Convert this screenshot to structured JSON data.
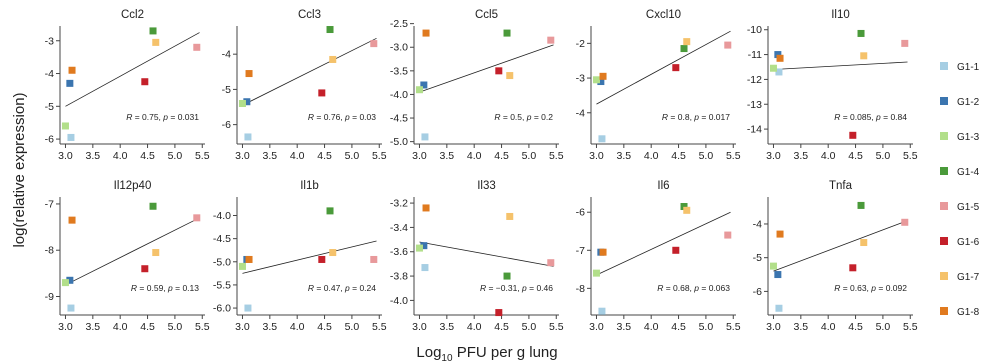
{
  "chart_data": {
    "type": "scatter",
    "ylabel": "log(relative expression)",
    "xlabel_prefix": "Log",
    "xlabel_sub": "10",
    "xlabel_suffix": " PFU per g lung",
    "legend_placement": "right",
    "legend": [
      {
        "name": "G1-1",
        "color": "#a6cee3"
      },
      {
        "name": "G1-2",
        "color": "#3b75af"
      },
      {
        "name": "G1-3",
        "color": "#b2df8a"
      },
      {
        "name": "G1-4",
        "color": "#4a9a3a"
      },
      {
        "name": "G1-5",
        "color": "#e8999b"
      },
      {
        "name": "G1-6",
        "color": "#c4202a"
      },
      {
        "name": "G1-7",
        "color": "#f5c26b"
      },
      {
        "name": "G1-8",
        "color": "#e07a1f"
      }
    ],
    "x_values": [
      3.1,
      3.08,
      3.0,
      4.6,
      5.4,
      4.45,
      4.65,
      3.12
    ],
    "xlim": [
      2.9,
      5.55
    ],
    "xticks": [
      "3.0",
      "3.5",
      "4.0",
      "4.5",
      "5.0",
      "5.5"
    ],
    "panels": [
      {
        "title": "Ccl2",
        "ylim": [
          -6.15,
          -2.55
        ],
        "yticks": [
          "-3",
          "-4",
          "-5",
          "-6"
        ],
        "y": [
          -5.95,
          -4.3,
          -5.6,
          -2.7,
          -3.2,
          -4.25,
          -3.05,
          -3.9
        ],
        "fit": [
          [
            3.0,
            -5.0
          ],
          [
            5.45,
            -2.75
          ]
        ],
        "annotation": {
          "r": "0.75",
          "p": "0.031"
        }
      },
      {
        "title": "Ccl3",
        "ylim": [
          -6.55,
          -3.2
        ],
        "yticks": [
          "-4",
          "-5",
          "-6"
        ],
        "y": [
          -6.35,
          -5.35,
          -5.4,
          -3.3,
          -3.7,
          -5.1,
          -4.15,
          -4.55
        ],
        "fit": [
          [
            3.0,
            -5.45
          ],
          [
            5.45,
            -3.55
          ]
        ],
        "annotation": {
          "r": "0.76",
          "p": "0.03"
        }
      },
      {
        "title": "Ccl5",
        "ylim": [
          -5.05,
          -2.55
        ],
        "yticks": [
          "-2.5",
          "-3.0",
          "-3.5",
          "-4.0",
          "-4.5",
          "-5.0"
        ],
        "y": [
          -4.9,
          -3.8,
          -3.9,
          -2.7,
          -2.85,
          -3.5,
          -3.6,
          -2.7
        ],
        "fit": [
          [
            3.0,
            -3.95
          ],
          [
            5.45,
            -2.95
          ]
        ],
        "annotation": {
          "r": "0.5",
          "p": "0.2"
        }
      },
      {
        "title": "Cxcl10",
        "ylim": [
          -4.9,
          -1.5
        ],
        "yticks": [
          "-2",
          "-3",
          "-4"
        ],
        "y": [
          -4.75,
          -3.1,
          -3.05,
          -2.15,
          -2.05,
          -2.7,
          -1.95,
          -2.95
        ],
        "fit": [
          [
            3.0,
            -3.75
          ],
          [
            5.45,
            -1.65
          ]
        ],
        "annotation": {
          "r": "0.8",
          "p": "0.017"
        }
      },
      {
        "title": "Il10",
        "ylim": [
          -14.6,
          -9.85
        ],
        "yticks": [
          "-10",
          "-11",
          "-12",
          "-13",
          "-14"
        ],
        "y": [
          -11.7,
          -11.0,
          -11.55,
          -10.15,
          -10.55,
          -14.25,
          -11.05,
          -11.15
        ],
        "fit": [
          [
            3.0,
            -11.6
          ],
          [
            5.45,
            -11.3
          ]
        ],
        "annotation": {
          "r": "0.085",
          "p": "0.84"
        }
      },
      {
        "title": "Il12p40",
        "ylim": [
          -9.4,
          -6.85
        ],
        "yticks": [
          "-7",
          "-8",
          "-9"
        ],
        "y": [
          -9.25,
          -8.65,
          -8.7,
          -7.05,
          -7.3,
          -8.4,
          -8.05,
          -7.35
        ],
        "fit": [
          [
            3.0,
            -8.75
          ],
          [
            5.45,
            -7.3
          ]
        ],
        "annotation": {
          "r": "0.59",
          "p": "0.13"
        }
      },
      {
        "title": "Il1b",
        "ylim": [
          -6.15,
          -3.6
        ],
        "yticks": [
          "-4.0",
          "-4.5",
          "-5.0",
          "-5.5",
          "-6.0"
        ],
        "y": [
          -6.0,
          -4.95,
          -5.1,
          -3.9,
          -4.95,
          -4.95,
          -4.8,
          -4.95
        ],
        "fit": [
          [
            3.0,
            -5.25
          ],
          [
            5.45,
            -4.55
          ]
        ],
        "annotation": {
          "r": "0.47",
          "p": "0.24"
        }
      },
      {
        "title": "Il33",
        "ylim": [
          -4.12,
          -3.15
        ],
        "yticks": [
          "-3.2",
          "-3.4",
          "-3.6",
          "-3.8",
          "-4.0"
        ],
        "y": [
          -3.73,
          -3.55,
          -3.57,
          -3.8,
          -3.69,
          -4.1,
          -3.31,
          -3.24
        ],
        "fit": [
          [
            3.0,
            -3.52
          ],
          [
            5.45,
            -3.72
          ]
        ],
        "annotation": {
          "r": "−0.31",
          "p": "0.46"
        }
      },
      {
        "title": "Il6",
        "ylim": [
          -8.7,
          -5.6
        ],
        "yticks": [
          "-6",
          "-7",
          "-8"
        ],
        "y": [
          -8.6,
          -7.05,
          -7.6,
          -5.85,
          -6.6,
          -7.0,
          -5.95,
          -7.05
        ],
        "fit": [
          [
            3.0,
            -7.65
          ],
          [
            5.45,
            -6.0
          ]
        ],
        "annotation": {
          "r": "0.68",
          "p": "0.063"
        }
      },
      {
        "title": "Tnfa",
        "ylim": [
          -6.7,
          -3.2
        ],
        "yticks": [
          "-4",
          "-5",
          "-6"
        ],
        "y": [
          -6.5,
          -5.5,
          -5.25,
          -3.45,
          -3.95,
          -5.3,
          -4.55,
          -4.3
        ],
        "fit": [
          [
            3.0,
            -5.4
          ],
          [
            5.45,
            -3.9
          ]
        ],
        "annotation": {
          "r": "0.63",
          "p": "0.092"
        }
      }
    ]
  }
}
